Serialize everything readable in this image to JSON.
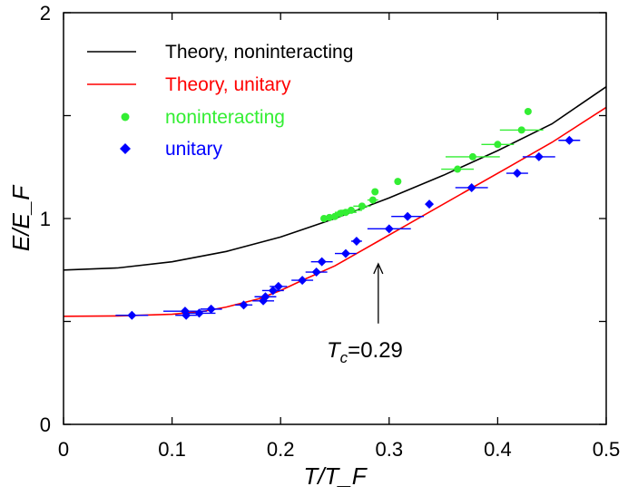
{
  "chart_data": {
    "type": "scatter",
    "title": "",
    "xlabel": "T/T_F",
    "ylabel": "E/E_F",
    "xlim": [
      0,
      0.5
    ],
    "ylim": [
      0,
      2
    ],
    "x_ticks": [
      "0",
      "0.1",
      "0.2",
      "0.3",
      "0.4",
      "0.5"
    ],
    "y_ticks": [
      "0",
      "1",
      "2"
    ],
    "x_tick_values": [
      0,
      0.1,
      0.2,
      0.3,
      0.4,
      0.5
    ],
    "y_tick_values": [
      0,
      1,
      2
    ],
    "y_minor_tick_values": [
      0.5,
      1.5
    ],
    "legend_position": "top-left",
    "series": [
      {
        "name": "Theory, noninteracting",
        "kind": "line",
        "color": "#000000",
        "x": [
          0,
          0.05,
          0.1,
          0.15,
          0.2,
          0.25,
          0.3,
          0.35,
          0.4,
          0.45,
          0.5
        ],
        "y": [
          0.75,
          0.76,
          0.79,
          0.84,
          0.91,
          1.0,
          1.1,
          1.21,
          1.33,
          1.46,
          1.64
        ]
      },
      {
        "name": "Theory, unitary",
        "kind": "line",
        "color": "#ff0000",
        "x": [
          0,
          0.05,
          0.1,
          0.13,
          0.15,
          0.18,
          0.2,
          0.22,
          0.25,
          0.29,
          0.33,
          0.37,
          0.41,
          0.45,
          0.5
        ],
        "y": [
          0.525,
          0.527,
          0.535,
          0.55,
          0.57,
          0.61,
          0.65,
          0.7,
          0.77,
          0.89,
          1.01,
          1.13,
          1.25,
          1.37,
          1.54
        ]
      },
      {
        "name": "noninteracting",
        "kind": "points",
        "marker": "circle",
        "color": "#33ee33",
        "x": [
          0.24,
          0.245,
          0.25,
          0.255,
          0.26,
          0.265,
          0.275,
          0.285,
          0.287,
          0.308,
          0.363,
          0.377,
          0.4,
          0.422,
          0.428
        ],
        "y": [
          1.0,
          1.005,
          1.01,
          1.025,
          1.03,
          1.04,
          1.06,
          1.09,
          1.13,
          1.18,
          1.24,
          1.3,
          1.36,
          1.43,
          1.52
        ],
        "xerr": [
          0,
          0,
          0.005,
          0.005,
          0.01,
          0.01,
          0.008,
          0.005,
          0,
          0,
          0.015,
          0.025,
          0.015,
          0.02,
          0
        ]
      },
      {
        "name": "unitary",
        "kind": "points",
        "marker": "diamond",
        "color": "#0000ff",
        "x": [
          0.063,
          0.112,
          0.113,
          0.125,
          0.136,
          0.166,
          0.184,
          0.186,
          0.193,
          0.198,
          0.22,
          0.233,
          0.238,
          0.26,
          0.27,
          0.3,
          0.317,
          0.337,
          0.376,
          0.418,
          0.438,
          0.466
        ],
        "y": [
          0.53,
          0.55,
          0.53,
          0.54,
          0.56,
          0.58,
          0.6,
          0.62,
          0.65,
          0.67,
          0.7,
          0.74,
          0.79,
          0.83,
          0.89,
          0.95,
          1.01,
          1.07,
          1.15,
          1.22,
          1.3,
          1.38
        ],
        "xerr": [
          0.015,
          0.02,
          0.01,
          0.015,
          0.01,
          0.008,
          0.01,
          0.01,
          0.01,
          0.008,
          0.01,
          0.01,
          0.01,
          0.01,
          0.005,
          0.02,
          0.015,
          0,
          0.015,
          0.01,
          0.015,
          0.01
        ]
      }
    ],
    "annotation": {
      "text_main": "T",
      "text_sub": "c",
      "text_value": "=0.29",
      "arrow_x": 0.29,
      "arrow_tip_y": 0.78,
      "arrow_tail_y": 0.49
    }
  }
}
